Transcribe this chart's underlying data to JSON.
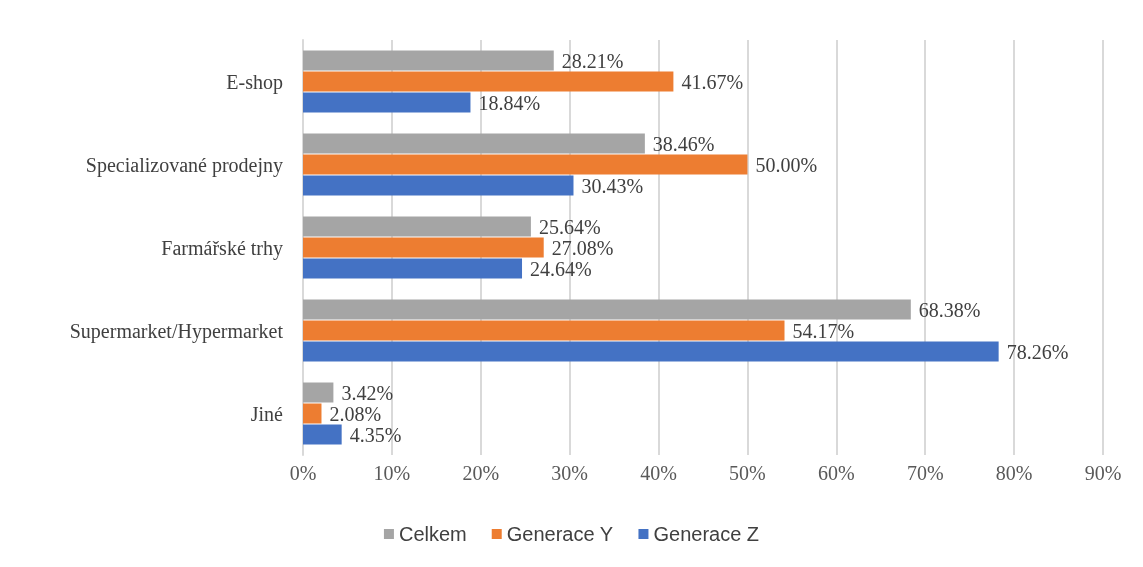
{
  "chart_data": {
    "type": "bar",
    "orientation": "horizontal",
    "categories": [
      "E-shop",
      "Specializované prodejny",
      "Farmářské trhy",
      "Supermarket/Hypermarket",
      "Jiné"
    ],
    "series": [
      {
        "name": "Celkem",
        "color": "#a5a5a5",
        "values": [
          28.21,
          38.46,
          25.64,
          68.38,
          3.42
        ],
        "value_labels": [
          "28.21%",
          "38.46%",
          "25.64%",
          "68.38%",
          "3.42%"
        ]
      },
      {
        "name": "Generace Y",
        "color": "#ed7d31",
        "values": [
          41.67,
          50.0,
          27.08,
          54.17,
          2.08
        ],
        "value_labels": [
          "41.67%",
          "50.00%",
          "27.08%",
          "54.17%",
          "2.08%"
        ]
      },
      {
        "name": "Generace Z",
        "color": "#4472c4",
        "values": [
          18.84,
          30.43,
          24.64,
          78.26,
          4.35
        ],
        "value_labels": [
          "18.84%",
          "30.43%",
          "24.64%",
          "78.26%",
          "4.35%"
        ]
      }
    ],
    "xlim": [
      0,
      90
    ],
    "xticks": [
      {
        "value": 0,
        "label": "0%"
      },
      {
        "value": 10,
        "label": "10%"
      },
      {
        "value": 20,
        "label": "20%"
      },
      {
        "value": 30,
        "label": "30%"
      },
      {
        "value": 40,
        "label": "40%"
      },
      {
        "value": 50,
        "label": "50%"
      },
      {
        "value": 60,
        "label": "60%"
      },
      {
        "value": 70,
        "label": "70%"
      },
      {
        "value": 80,
        "label": "80%"
      },
      {
        "value": 90,
        "label": "90%"
      }
    ],
    "grid": "x",
    "legend": "bottom"
  }
}
